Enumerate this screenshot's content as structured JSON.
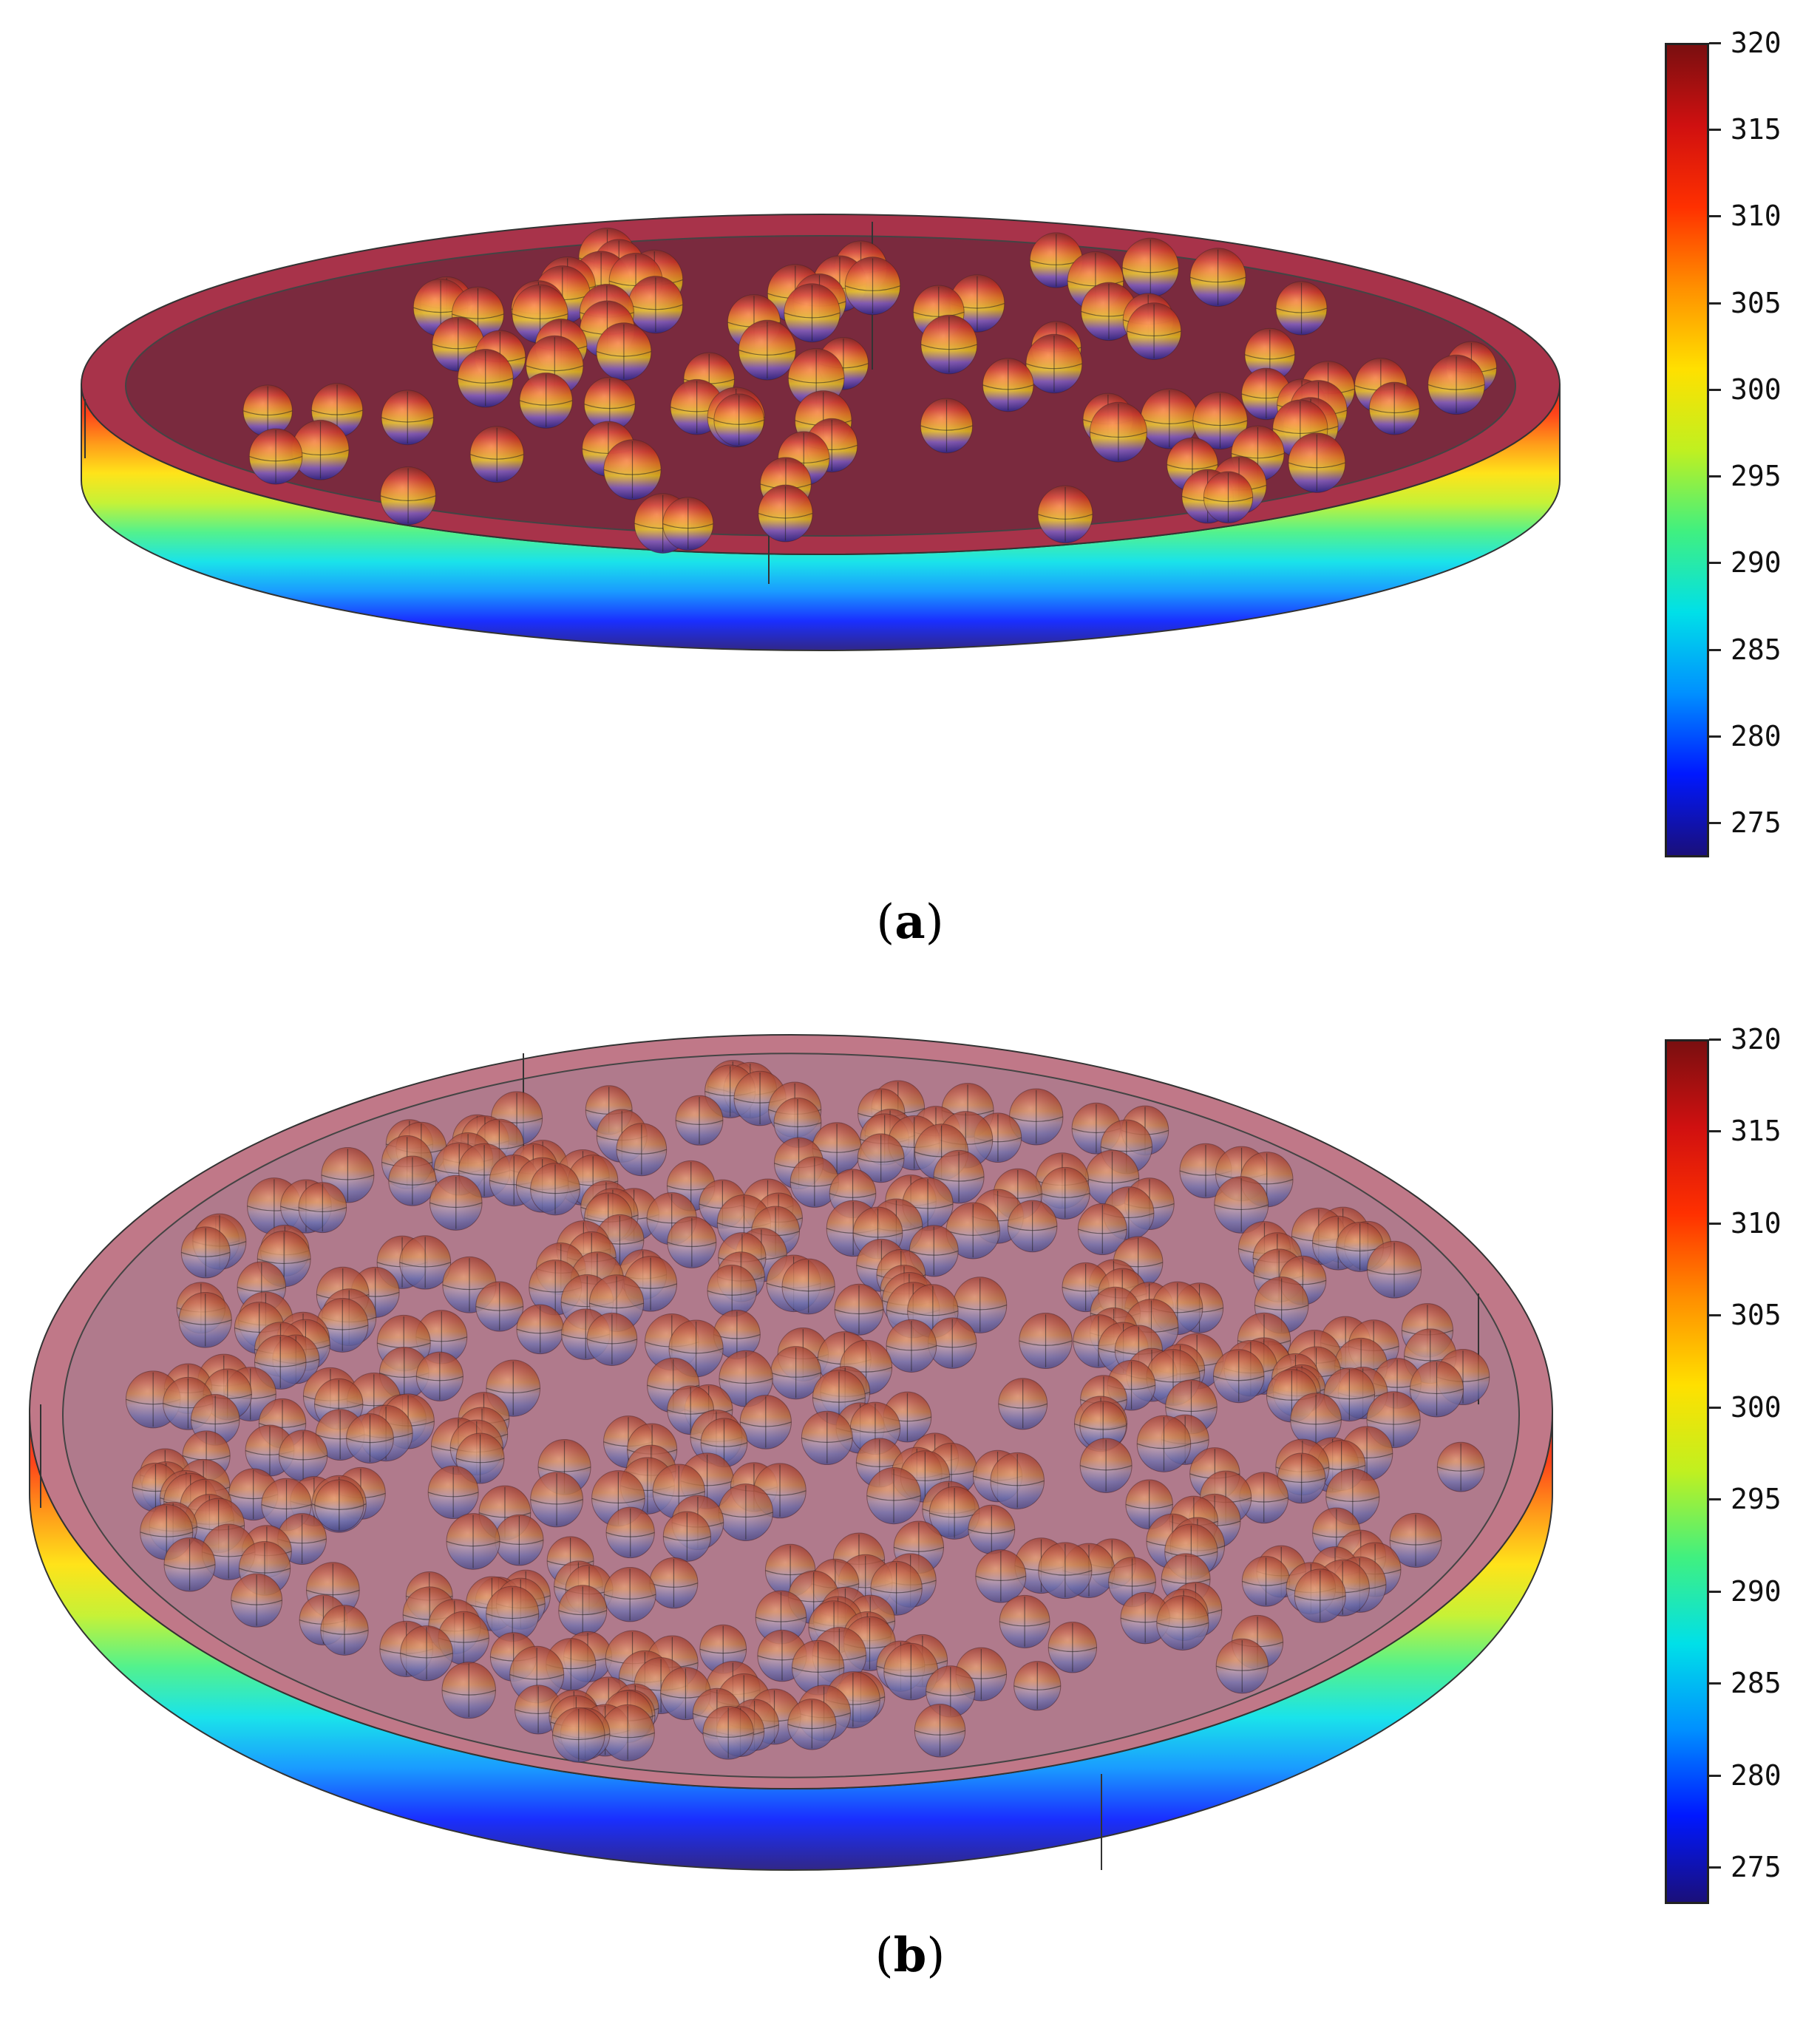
{
  "panels": [
    {
      "id": "a",
      "caption": {
        "open": "(",
        "letter": "a",
        "close": ")"
      },
      "colorbar": {
        "ticks": [
          "320",
          "315",
          "310",
          "305",
          "300",
          "295",
          "290",
          "285",
          "280",
          "275"
        ],
        "range": [
          273,
          320
        ]
      },
      "sphere_count": 90
    },
    {
      "id": "b",
      "caption": {
        "open": "(",
        "letter": "b",
        "close": ")"
      },
      "colorbar": {
        "ticks": [
          "320",
          "315",
          "310",
          "305",
          "300",
          "295",
          "290",
          "285",
          "280",
          "275"
        ],
        "range": [
          273,
          320
        ]
      },
      "sphere_count": 420
    }
  ],
  "colormap": [
    "#1a0f7a",
    "#0018ff",
    "#0090ff",
    "#00e0e8",
    "#40f080",
    "#c0f020",
    "#ffe000",
    "#ff9000",
    "#ff3000",
    "#d01010",
    "#7a0f10"
  ]
}
